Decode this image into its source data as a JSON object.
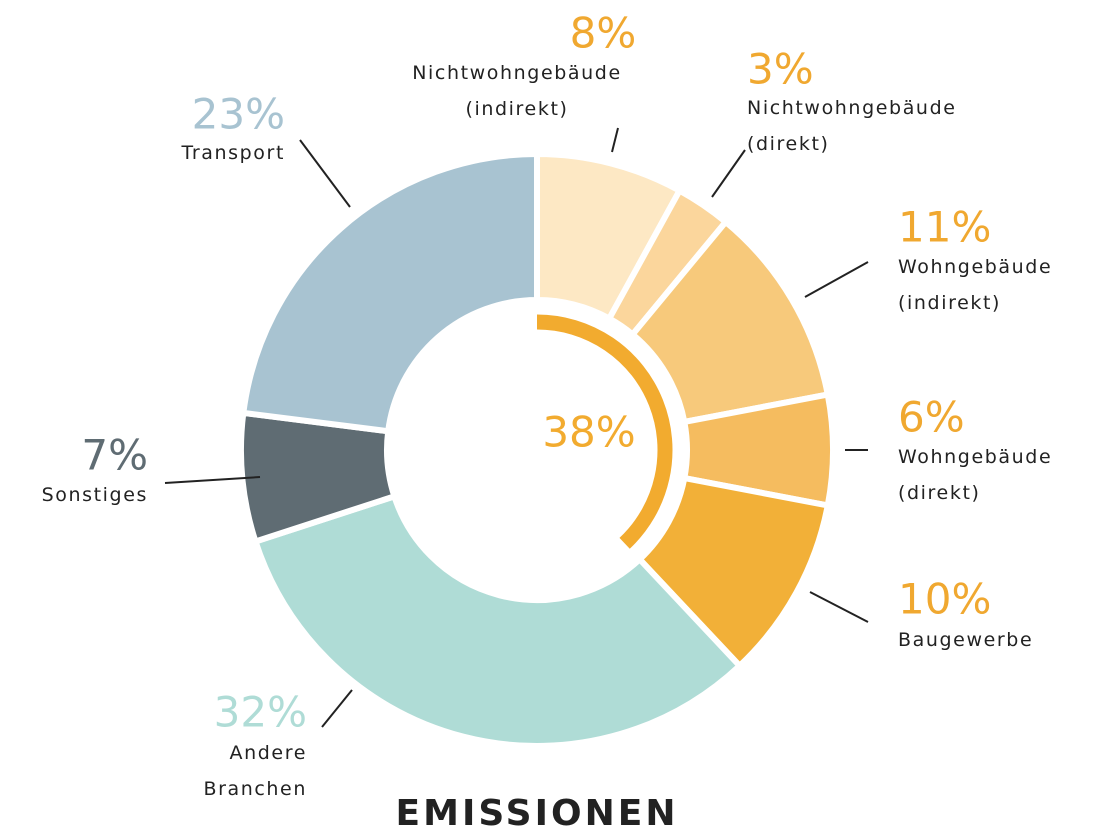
{
  "chart_data": {
    "type": "donut",
    "title": "EMISSIONEN",
    "categories": [
      "Nichtwohngebäude (indirekt)",
      "Nichtwohngebäude (direkt)",
      "Wohngebäude (indirekt)",
      "Wohngebäude (direkt)",
      "Baugewerbe",
      "Andere Branchen",
      "Sonstiges",
      "Transport"
    ],
    "values": [
      8,
      3,
      11,
      6,
      10,
      32,
      7,
      23
    ],
    "value_labels": [
      "8%",
      "3%",
      "11%",
      "6%",
      "10%",
      "32%",
      "7%",
      "23%"
    ],
    "colors": [
      "#fde8c4",
      "#fbd69c",
      "#f7c97b",
      "#f5bc5f",
      "#f2b038",
      "#afdcd6",
      "#5f6c73",
      "#a8c3d1"
    ],
    "label_colors": [
      "#f0a830",
      "#f0a830",
      "#f0a830",
      "#f0a830",
      "#f0a830",
      "#afdcd6",
      "#5f6c73",
      "#a8c3d1"
    ],
    "inner_arc": {
      "value": 38,
      "label": "38%",
      "color": "#f2ab2f"
    }
  }
}
